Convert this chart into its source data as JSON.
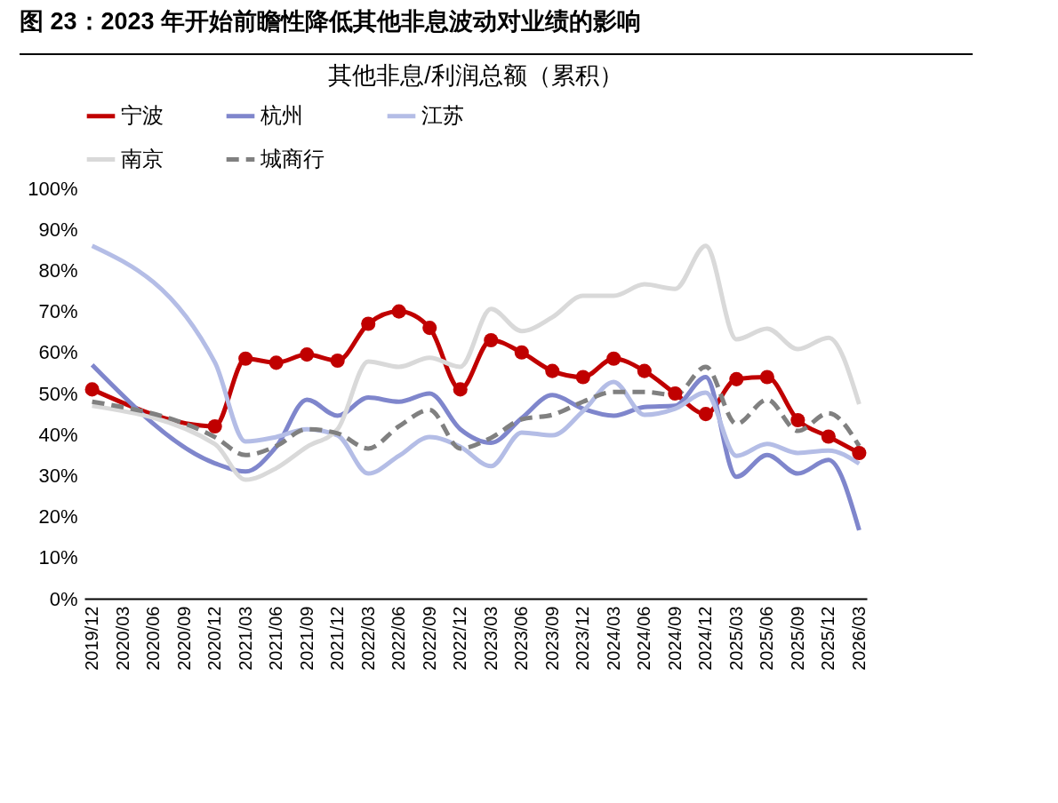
{
  "chart_data": {
    "type": "line",
    "title": "图 23：2023 年开始前瞻性降低其他非息波动对业绩的影响",
    "subtitle": "其他非息/利润总额（累积）",
    "categories": [
      "2019/12",
      "2020/03",
      "2020/06",
      "2020/09",
      "2020/12",
      "2021/03",
      "2021/06",
      "2021/09",
      "2021/12",
      "2022/03",
      "2022/06",
      "2022/09",
      "2022/12",
      "2023/03",
      "2023/06",
      "2023/09",
      "2023/12",
      "2024/03",
      "2024/06",
      "2024/09",
      "2024/12",
      "2025/03",
      "2025/06",
      "2025/09",
      "2025/12",
      "2026/03"
    ],
    "series": [
      {
        "name": "宁波",
        "color": "#c00000",
        "marker": "circle",
        "line_style": "solid",
        "values": [
          51,
          null,
          null,
          null,
          42,
          58.5,
          57.5,
          59.5,
          58,
          67,
          70,
          66,
          51,
          63,
          60,
          55.5,
          54,
          58.5,
          55.5,
          50,
          45,
          53.5,
          54,
          43.5,
          39.5,
          35.5
        ]
      },
      {
        "name": "杭州",
        "color": "#7f86cc",
        "marker": "none",
        "line_style": "solid",
        "values": [
          57,
          null,
          null,
          null,
          33,
          31,
          37,
          48.5,
          44.6,
          49,
          48,
          50,
          41.3,
          38,
          44,
          49.6,
          46.3,
          44.6,
          46.7,
          47,
          54,
          29.7,
          35,
          30.5,
          33.8,
          16.7
        ]
      },
      {
        "name": "江苏",
        "color": "#b4bde6",
        "marker": "none",
        "line_style": "solid",
        "values": [
          86,
          null,
          null,
          null,
          57.6,
          38.3,
          39.4,
          41.3,
          39.8,
          30.5,
          34.8,
          39.4,
          37,
          32.3,
          40.5,
          39.8,
          45.7,
          52.8,
          44.8,
          46.3,
          50.2,
          34.8,
          37.7,
          35.5,
          36.1,
          32.9
        ]
      },
      {
        "name": "南京",
        "color": "#d9d9d9",
        "marker": "none",
        "line_style": "solid",
        "values": [
          47,
          null,
          null,
          null,
          37.7,
          29,
          31.8,
          37,
          41.3,
          57.8,
          56.5,
          58.7,
          56.5,
          70.6,
          65.2,
          68.6,
          73.8,
          73.8,
          76.6,
          75.5,
          86,
          63.2,
          65.8,
          60.8,
          63.6,
          47.4
        ]
      },
      {
        "name": "城商行",
        "color": "#808080",
        "marker": "none",
        "line_style": "dashed",
        "values": [
          48,
          null,
          null,
          null,
          39.4,
          35,
          37.2,
          41.3,
          40.3,
          36.6,
          42,
          46,
          36.6,
          39.2,
          43.7,
          44.8,
          48,
          50.4,
          50.4,
          49.6,
          56.5,
          42.6,
          48.5,
          40.9,
          45.2,
          37.2
        ]
      }
    ],
    "ylim": [
      0,
      100
    ],
    "yticks": [
      {
        "value": 0,
        "label": "0%"
      },
      {
        "value": 10,
        "label": "10%"
      },
      {
        "value": 20,
        "label": "20%"
      },
      {
        "value": 30,
        "label": "30%"
      },
      {
        "value": 40,
        "label": "40%"
      },
      {
        "value": 50,
        "label": "50%"
      },
      {
        "value": 60,
        "label": "60%"
      },
      {
        "value": 70,
        "label": "70%"
      },
      {
        "value": 80,
        "label": "80%"
      },
      {
        "value": 90,
        "label": "90%"
      },
      {
        "value": 100,
        "label": "100%"
      }
    ],
    "grid": false,
    "legend": "top"
  }
}
